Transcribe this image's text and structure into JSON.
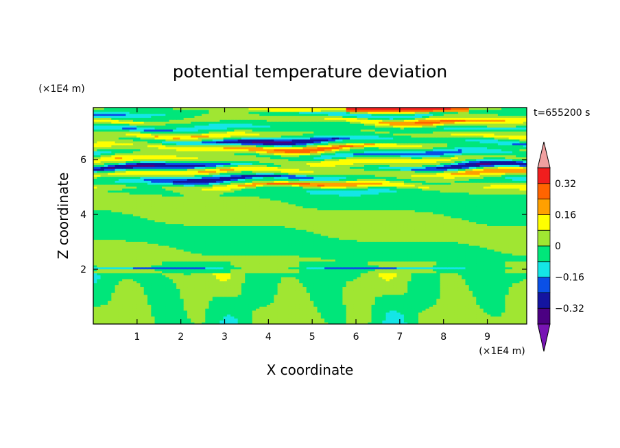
{
  "chart_data": {
    "type": "heatmap",
    "title": "potential temperature deviation",
    "xlabel": "X coordinate",
    "ylabel": "Z coordinate",
    "x_unit": "(×1E4 m)",
    "y_unit": "(×1E4 m)",
    "time_label": "t=655200 s",
    "xlim": [
      0,
      9.9
    ],
    "ylim": [
      0,
      7.9
    ],
    "x_ticks": [
      1,
      2,
      3,
      4,
      5,
      6,
      7,
      8,
      9
    ],
    "y_ticks": [
      2,
      4,
      6
    ],
    "colorbar": {
      "levels": [
        -0.4,
        -0.32,
        -0.24,
        -0.16,
        -0.08,
        0,
        0.08,
        0.16,
        0.24,
        0.32,
        0.4
      ],
      "colors": [
        "#4b0082",
        "#1414a0",
        "#0a50e6",
        "#14e6e6",
        "#00e67a",
        "#a0e632",
        "#ffff00",
        "#ffa000",
        "#ff6400",
        "#f01e1e"
      ],
      "under_color": "#7814b4",
      "over_color": "#f0a0a0",
      "tick_labels": [
        "0.32",
        "0.16",
        "0",
        "−0.16",
        "−0.32"
      ],
      "tick_values": [
        0.32,
        0.16,
        0,
        -0.16,
        -0.32
      ]
    },
    "description_values": {
      "layers": [
        {
          "z": 7.85,
          "value": 0.12
        },
        {
          "z": 7.7,
          "value": -0.22
        },
        {
          "z": 7.45,
          "value": 0.2
        },
        {
          "z": 7.2,
          "value": -0.15
        },
        {
          "z": 6.95,
          "value": 0.18
        },
        {
          "z": 6.7,
          "value": -0.3
        },
        {
          "z": 6.45,
          "value": 0.3
        },
        {
          "z": 6.2,
          "value": -0.2
        },
        {
          "z": 6.0,
          "value": 0.15
        },
        {
          "z": 5.75,
          "value": -0.33
        },
        {
          "z": 5.55,
          "value": 0.22
        },
        {
          "z": 5.3,
          "value": -0.28
        },
        {
          "z": 5.05,
          "value": 0.3
        },
        {
          "z": 4.8,
          "value": -0.05
        },
        {
          "z": 2.1,
          "value": 0.06
        }
      ]
    }
  }
}
